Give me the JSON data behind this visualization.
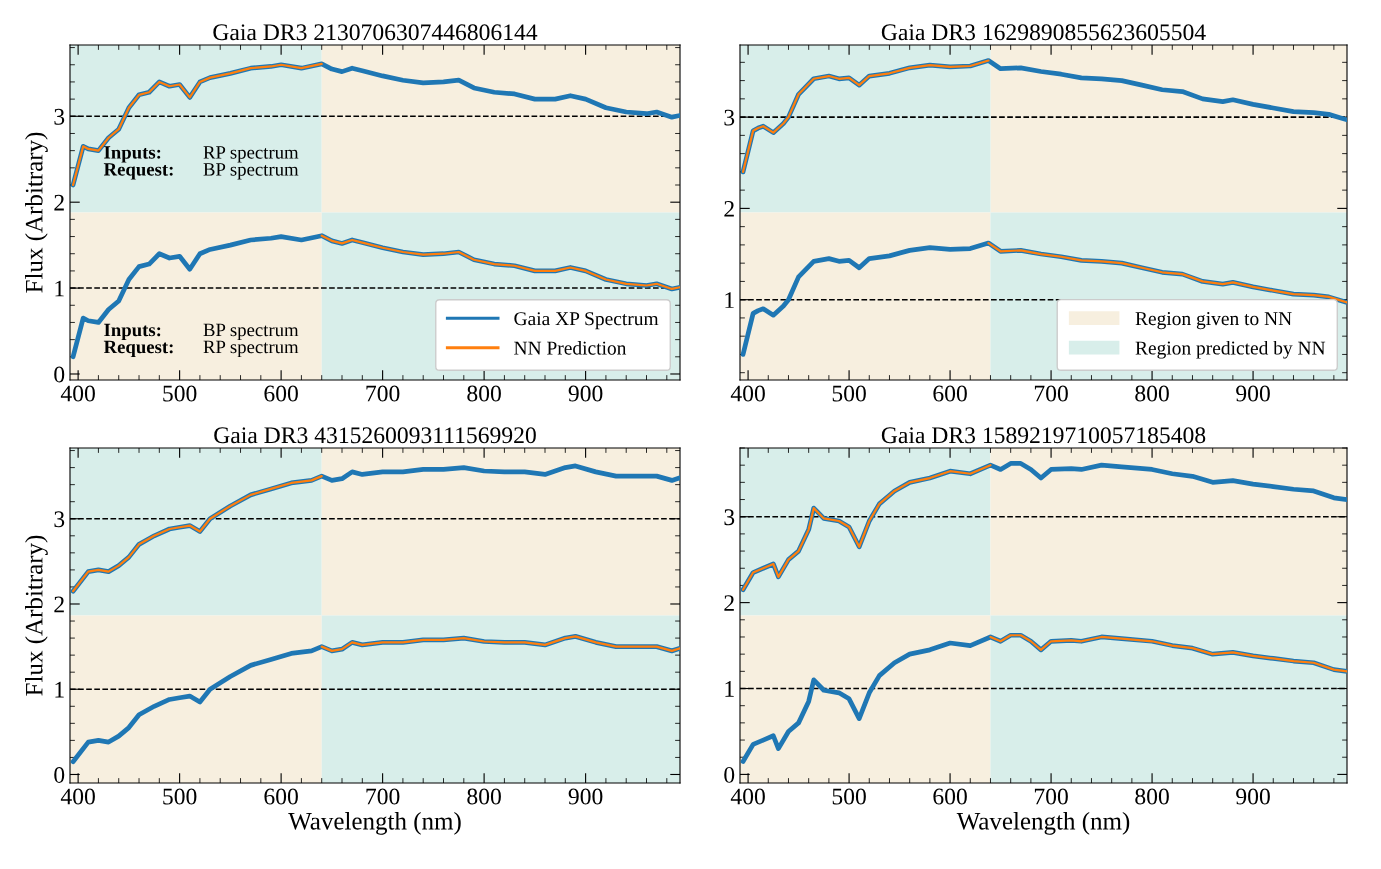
{
  "chart_data": [
    {
      "type": "line",
      "title": "Gaia DR3 2130706307446806144",
      "ylabel": "Flux (Arbitrary)",
      "xlim": [
        392,
        993
      ],
      "xticks": [
        400,
        500,
        600,
        700,
        800,
        900
      ],
      "ylim": [
        -0.07,
        3.83
      ],
      "yticks": [
        0,
        1,
        2,
        3
      ],
      "legend": "bottom right",
      "series": [
        {
          "name": "Gaia XP Spectrum",
          "color": "#1f77b4",
          "x": [
            395,
            405,
            410,
            420,
            430,
            440,
            450,
            460,
            470,
            480,
            490,
            500,
            510,
            520,
            530,
            550,
            570,
            590,
            600,
            620,
            640,
            650,
            660,
            670,
            680,
            700,
            720,
            740,
            760,
            775,
            790,
            810,
            830,
            850,
            870,
            885,
            900,
            920,
            940,
            960,
            970,
            985,
            993
          ],
          "values": [
            2.2,
            2.65,
            2.62,
            2.6,
            2.75,
            2.85,
            3.1,
            3.25,
            3.28,
            3.4,
            3.35,
            3.37,
            3.22,
            3.4,
            3.45,
            3.5,
            3.56,
            3.58,
            3.6,
            3.56,
            3.61,
            3.55,
            3.52,
            3.56,
            3.53,
            3.47,
            3.42,
            3.39,
            3.4,
            3.42,
            3.33,
            3.28,
            3.26,
            3.2,
            3.2,
            3.24,
            3.2,
            3.1,
            3.05,
            3.03,
            3.05,
            2.99,
            3.01
          ]
        },
        {
          "name": "NN Prediction",
          "color": "#ff7f0e",
          "x": [
            395,
            405,
            410,
            420,
            430,
            440,
            450,
            460,
            470,
            480,
            490,
            500,
            510,
            520,
            530,
            550,
            570,
            590,
            600,
            620,
            640
          ],
          "values": [
            2.2,
            2.65,
            2.62,
            2.6,
            2.75,
            2.85,
            3.1,
            3.25,
            3.28,
            3.4,
            3.35,
            3.37,
            3.22,
            3.4,
            3.45,
            3.5,
            3.56,
            3.58,
            3.6,
            3.56,
            3.61
          ]
        },
        {
          "color": "#1f77b4",
          "x": [
            395,
            405,
            410,
            420,
            430,
            440,
            450,
            460,
            470,
            480,
            490,
            500,
            510,
            520,
            530,
            550,
            570,
            590,
            600,
            620,
            640,
            650,
            660,
            670,
            680,
            700,
            720,
            740,
            760,
            775,
            790,
            810,
            830,
            850,
            870,
            885,
            900,
            920,
            940,
            960,
            970,
            985,
            993
          ],
          "values": [
            0.2,
            0.65,
            0.62,
            0.6,
            0.75,
            0.85,
            1.1,
            1.25,
            1.28,
            1.4,
            1.35,
            1.37,
            1.22,
            1.4,
            1.45,
            1.5,
            1.56,
            1.58,
            1.6,
            1.56,
            1.61,
            1.55,
            1.52,
            1.56,
            1.53,
            1.47,
            1.42,
            1.39,
            1.4,
            1.42,
            1.33,
            1.28,
            1.26,
            1.2,
            1.2,
            1.24,
            1.2,
            1.1,
            1.05,
            1.03,
            1.05,
            0.99,
            1.01
          ]
        },
        {
          "color": "#ff7f0e",
          "x": [
            640,
            650,
            660,
            670,
            680,
            700,
            720,
            740,
            760,
            775,
            790,
            810,
            830,
            850,
            870,
            885,
            900,
            920,
            940,
            960,
            970,
            985,
            993
          ],
          "values": [
            1.61,
            1.55,
            1.52,
            1.56,
            1.53,
            1.47,
            1.42,
            1.39,
            1.4,
            1.42,
            1.33,
            1.28,
            1.26,
            1.2,
            1.2,
            1.24,
            1.2,
            1.1,
            1.05,
            1.03,
            1.05,
            0.99,
            1.01
          ]
        }
      ],
      "ref_lines": [
        {
          "axis": "y",
          "value": 1,
          "color": "#000000",
          "line_style": "dashed"
        },
        {
          "axis": "y",
          "value": 3,
          "color": "#000000",
          "line_style": "dashed"
        }
      ],
      "bands": [
        {
          "axis": "x",
          "from": 392,
          "to": 640,
          "color": "#d8eeea"
        },
        {
          "axis": "x",
          "from": 640,
          "to": 993,
          "color": "#f7efdf"
        },
        {
          "axis": "x",
          "from": 392,
          "to": 640,
          "color": "#f7efdf"
        },
        {
          "axis": "x",
          "from": 640,
          "to": 993,
          "color": "#d8eeea"
        }
      ],
      "annotations": [
        "Inputs:\nRequest:",
        "RP spectrum\nBP spectrum",
        "Inputs:\nRequest:",
        "BP spectrum\nRP spectrum"
      ]
    },
    {
      "type": "line",
      "title": "Gaia DR3 1629890855623605504",
      "xlim": [
        392,
        993
      ],
      "xticks": [
        400,
        500,
        600,
        700,
        800,
        900
      ],
      "ylim": [
        0.12,
        3.79
      ],
      "yticks": [
        1,
        2,
        3
      ],
      "legend": "bottom right",
      "series": [
        {
          "color": "#1f77b4",
          "x": [
            395,
            405,
            410,
            415,
            425,
            435,
            440,
            450,
            465,
            480,
            490,
            500,
            510,
            520,
            540,
            560,
            580,
            600,
            620,
            638,
            650,
            670,
            690,
            710,
            730,
            750,
            770,
            790,
            810,
            830,
            850,
            870,
            880,
            900,
            920,
            940,
            960,
            975,
            993
          ],
          "values": [
            2.4,
            2.85,
            2.88,
            2.9,
            2.83,
            2.93,
            3.0,
            3.25,
            3.42,
            3.45,
            3.42,
            3.43,
            3.35,
            3.45,
            3.48,
            3.54,
            3.57,
            3.55,
            3.56,
            3.62,
            3.53,
            3.54,
            3.5,
            3.47,
            3.43,
            3.42,
            3.4,
            3.35,
            3.3,
            3.28,
            3.2,
            3.17,
            3.19,
            3.14,
            3.1,
            3.06,
            3.05,
            3.03,
            2.97
          ]
        },
        {
          "color": "#ff7f0e",
          "x": [
            395,
            405,
            410,
            415,
            425,
            435,
            440,
            450,
            465,
            480,
            490,
            500,
            510,
            520,
            540,
            560,
            580,
            600,
            620,
            638
          ],
          "values": [
            2.4,
            2.85,
            2.88,
            2.9,
            2.83,
            2.93,
            3.0,
            3.25,
            3.42,
            3.45,
            3.42,
            3.43,
            3.35,
            3.45,
            3.48,
            3.54,
            3.57,
            3.55,
            3.56,
            3.62
          ]
        },
        {
          "color": "#1f77b4",
          "x": [
            395,
            405,
            410,
            415,
            425,
            435,
            440,
            450,
            465,
            480,
            490,
            500,
            510,
            520,
            540,
            560,
            580,
            600,
            620,
            638,
            650,
            670,
            690,
            710,
            730,
            750,
            770,
            790,
            810,
            830,
            850,
            870,
            880,
            900,
            920,
            940,
            960,
            975,
            993
          ],
          "values": [
            0.4,
            0.85,
            0.88,
            0.9,
            0.83,
            0.93,
            1.0,
            1.25,
            1.42,
            1.45,
            1.42,
            1.43,
            1.35,
            1.45,
            1.48,
            1.54,
            1.57,
            1.55,
            1.56,
            1.62,
            1.53,
            1.54,
            1.5,
            1.47,
            1.43,
            1.42,
            1.4,
            1.35,
            1.3,
            1.28,
            1.2,
            1.17,
            1.19,
            1.14,
            1.1,
            1.06,
            1.05,
            1.03,
            0.97
          ]
        },
        {
          "color": "#ff7f0e",
          "x": [
            638,
            650,
            670,
            690,
            710,
            730,
            750,
            770,
            790,
            810,
            830,
            850,
            870,
            880,
            900,
            920,
            940,
            960,
            975,
            993
          ],
          "values": [
            1.62,
            1.53,
            1.54,
            1.5,
            1.47,
            1.43,
            1.42,
            1.4,
            1.35,
            1.3,
            1.28,
            1.2,
            1.17,
            1.19,
            1.14,
            1.1,
            1.06,
            1.05,
            1.03,
            0.97
          ]
        }
      ],
      "ref_lines": [
        {
          "axis": "y",
          "value": 1,
          "color": "#000000",
          "line_style": "dashed"
        },
        {
          "axis": "y",
          "value": 3,
          "color": "#000000",
          "line_style": "dashed"
        }
      ],
      "bands": [
        {
          "axis": "x",
          "from": 640,
          "to": 993,
          "color": "#f7efdf",
          "label": "Region given to NN"
        },
        {
          "axis": "x",
          "from": 392,
          "to": 640,
          "color": "#d8eeea",
          "label": "Region predicted by NN"
        },
        {
          "axis": "x",
          "from": 392,
          "to": 640,
          "color": "#f7efdf"
        },
        {
          "axis": "x",
          "from": 640,
          "to": 993,
          "color": "#d8eeea"
        }
      ]
    },
    {
      "type": "line",
      "title": "Gaia DR3 4315260093111569920",
      "xlabel": "Wavelength (nm)",
      "ylabel": "Flux (Arbitrary)",
      "xlim": [
        392,
        993
      ],
      "xticks": [
        400,
        500,
        600,
        700,
        800,
        900
      ],
      "ylim": [
        -0.1,
        3.83
      ],
      "yticks": [
        0,
        1,
        2,
        3
      ],
      "series": [
        {
          "color": "#1f77b4",
          "x": [
            395,
            410,
            420,
            430,
            440,
            450,
            460,
            475,
            490,
            500,
            510,
            520,
            530,
            550,
            570,
            590,
            610,
            630,
            640,
            650,
            660,
            670,
            680,
            700,
            720,
            740,
            760,
            780,
            800,
            820,
            840,
            860,
            880,
            890,
            910,
            930,
            950,
            970,
            985,
            993
          ],
          "values": [
            2.15,
            2.38,
            2.4,
            2.38,
            2.45,
            2.55,
            2.7,
            2.8,
            2.88,
            2.9,
            2.92,
            2.85,
            3.0,
            3.15,
            3.28,
            3.35,
            3.42,
            3.45,
            3.5,
            3.45,
            3.47,
            3.55,
            3.52,
            3.55,
            3.55,
            3.58,
            3.58,
            3.6,
            3.56,
            3.55,
            3.55,
            3.52,
            3.6,
            3.62,
            3.55,
            3.5,
            3.5,
            3.5,
            3.45,
            3.48
          ]
        },
        {
          "color": "#ff7f0e",
          "x": [
            395,
            410,
            420,
            430,
            440,
            450,
            460,
            475,
            490,
            500,
            510,
            520,
            530,
            550,
            570,
            590,
            610,
            630,
            640
          ],
          "values": [
            2.15,
            2.38,
            2.4,
            2.38,
            2.45,
            2.55,
            2.7,
            2.8,
            2.88,
            2.9,
            2.92,
            2.85,
            3.0,
            3.15,
            3.28,
            3.35,
            3.42,
            3.45,
            3.5
          ]
        },
        {
          "color": "#1f77b4",
          "x": [
            395,
            410,
            420,
            430,
            440,
            450,
            460,
            475,
            490,
            500,
            510,
            520,
            530,
            550,
            570,
            590,
            610,
            630,
            640,
            650,
            660,
            670,
            680,
            700,
            720,
            740,
            760,
            780,
            800,
            820,
            840,
            860,
            880,
            890,
            910,
            930,
            950,
            970,
            985,
            993
          ],
          "values": [
            0.15,
            0.38,
            0.4,
            0.38,
            0.45,
            0.55,
            0.7,
            0.8,
            0.88,
            0.9,
            0.92,
            0.85,
            1.0,
            1.15,
            1.28,
            1.35,
            1.42,
            1.45,
            1.5,
            1.45,
            1.47,
            1.55,
            1.52,
            1.55,
            1.55,
            1.58,
            1.58,
            1.6,
            1.56,
            1.55,
            1.55,
            1.52,
            1.6,
            1.62,
            1.55,
            1.5,
            1.5,
            1.5,
            1.45,
            1.48
          ]
        },
        {
          "color": "#ff7f0e",
          "x": [
            640,
            650,
            660,
            670,
            680,
            700,
            720,
            740,
            760,
            780,
            800,
            820,
            840,
            860,
            880,
            890,
            910,
            930,
            950,
            970,
            985,
            993
          ],
          "values": [
            1.5,
            1.45,
            1.47,
            1.55,
            1.52,
            1.55,
            1.55,
            1.58,
            1.58,
            1.6,
            1.56,
            1.55,
            1.55,
            1.52,
            1.6,
            1.62,
            1.55,
            1.5,
            1.5,
            1.5,
            1.45,
            1.48
          ]
        }
      ],
      "ref_lines": [
        {
          "axis": "y",
          "value": 1,
          "color": "#000000",
          "line_style": "dashed"
        },
        {
          "axis": "y",
          "value": 3,
          "color": "#000000",
          "line_style": "dashed"
        }
      ],
      "bands": [
        {
          "axis": "x",
          "from": 392,
          "to": 640,
          "color": "#d8eeea"
        },
        {
          "axis": "x",
          "from": 640,
          "to": 993,
          "color": "#f7efdf"
        },
        {
          "axis": "x",
          "from": 392,
          "to": 640,
          "color": "#f7efdf"
        },
        {
          "axis": "x",
          "from": 640,
          "to": 993,
          "color": "#d8eeea"
        }
      ]
    },
    {
      "type": "line",
      "title": "Gaia DR3 1589219710057185408",
      "xlabel": "Wavelength (nm)",
      "xlim": [
        392,
        993
      ],
      "xticks": [
        400,
        500,
        600,
        700,
        800,
        900
      ],
      "ylim": [
        -0.1,
        3.8
      ],
      "yticks": [
        0,
        1,
        2,
        3
      ],
      "series": [
        {
          "color": "#1f77b4",
          "x": [
            395,
            405,
            415,
            425,
            430,
            440,
            450,
            460,
            465,
            475,
            490,
            500,
            510,
            520,
            530,
            545,
            560,
            580,
            600,
            620,
            640,
            650,
            660,
            670,
            680,
            690,
            700,
            720,
            730,
            750,
            770,
            800,
            820,
            840,
            860,
            880,
            900,
            920,
            940,
            960,
            980,
            993
          ],
          "values": [
            2.15,
            2.35,
            2.4,
            2.45,
            2.3,
            2.5,
            2.6,
            2.85,
            3.1,
            2.98,
            2.95,
            2.88,
            2.65,
            2.95,
            3.15,
            3.3,
            3.4,
            3.45,
            3.53,
            3.5,
            3.6,
            3.55,
            3.62,
            3.62,
            3.55,
            3.45,
            3.55,
            3.56,
            3.55,
            3.6,
            3.58,
            3.55,
            3.5,
            3.47,
            3.4,
            3.42,
            3.38,
            3.35,
            3.32,
            3.3,
            3.22,
            3.2
          ]
        },
        {
          "color": "#ff7f0e",
          "x": [
            395,
            405,
            415,
            425,
            430,
            440,
            450,
            460,
            465,
            475,
            490,
            500,
            510,
            520,
            530,
            545,
            560,
            580,
            600,
            620,
            640
          ],
          "values": [
            2.15,
            2.35,
            2.4,
            2.45,
            2.3,
            2.5,
            2.6,
            2.85,
            3.1,
            2.98,
            2.95,
            2.88,
            2.65,
            2.95,
            3.15,
            3.3,
            3.4,
            3.45,
            3.53,
            3.5,
            3.6
          ]
        },
        {
          "color": "#1f77b4",
          "x": [
            395,
            405,
            415,
            425,
            430,
            440,
            450,
            460,
            465,
            475,
            490,
            500,
            510,
            520,
            530,
            545,
            560,
            580,
            600,
            620,
            640,
            650,
            660,
            670,
            680,
            690,
            700,
            720,
            730,
            750,
            770,
            800,
            820,
            840,
            860,
            880,
            900,
            920,
            940,
            960,
            980,
            993
          ],
          "values": [
            0.15,
            0.35,
            0.4,
            0.45,
            0.3,
            0.5,
            0.6,
            0.85,
            1.1,
            0.98,
            0.95,
            0.88,
            0.65,
            0.95,
            1.15,
            1.3,
            1.4,
            1.45,
            1.53,
            1.5,
            1.6,
            1.55,
            1.62,
            1.62,
            1.55,
            1.45,
            1.55,
            1.56,
            1.55,
            1.6,
            1.58,
            1.55,
            1.5,
            1.47,
            1.4,
            1.42,
            1.38,
            1.35,
            1.32,
            1.3,
            1.22,
            1.2
          ]
        },
        {
          "color": "#ff7f0e",
          "x": [
            640,
            650,
            660,
            670,
            680,
            690,
            700,
            720,
            730,
            750,
            770,
            800,
            820,
            840,
            860,
            880,
            900,
            920,
            940,
            960,
            980,
            993
          ],
          "values": [
            1.6,
            1.55,
            1.62,
            1.62,
            1.55,
            1.45,
            1.55,
            1.56,
            1.55,
            1.6,
            1.58,
            1.55,
            1.5,
            1.47,
            1.4,
            1.42,
            1.38,
            1.35,
            1.32,
            1.3,
            1.22,
            1.2
          ]
        }
      ],
      "ref_lines": [
        {
          "axis": "y",
          "value": 1,
          "color": "#000000",
          "line_style": "dashed"
        },
        {
          "axis": "y",
          "value": 3,
          "color": "#000000",
          "line_style": "dashed"
        }
      ],
      "bands": [
        {
          "axis": "x",
          "from": 392,
          "to": 640,
          "color": "#d8eeea"
        },
        {
          "axis": "x",
          "from": 640,
          "to": 993,
          "color": "#f7efdf"
        },
        {
          "axis": "x",
          "from": 392,
          "to": 640,
          "color": "#f7efdf"
        },
        {
          "axis": "x",
          "from": 640,
          "to": 993,
          "color": "#d8eeea"
        }
      ]
    }
  ]
}
